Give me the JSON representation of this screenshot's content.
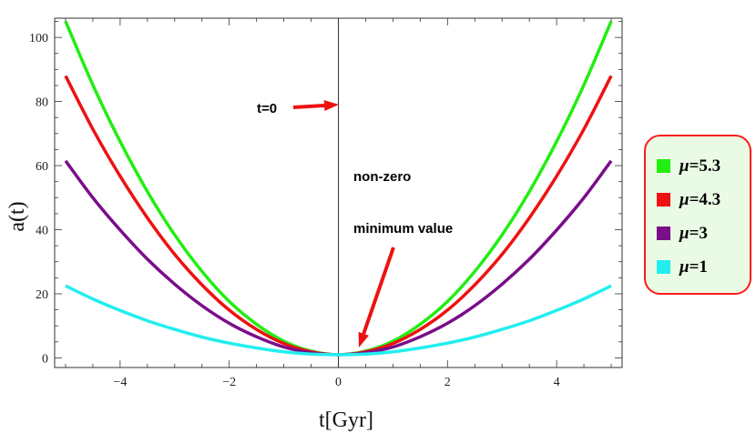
{
  "chart_data": {
    "type": "line",
    "title": "",
    "xlabel": "t[Gyr]",
    "ylabel": "a(t)",
    "xlim": [
      -5.2,
      5.2
    ],
    "ylim": [
      -3,
      106
    ],
    "xticks": [
      -4,
      -2,
      0,
      2,
      4
    ],
    "xtick_labels": [
      "−4",
      "−2",
      "0",
      "2",
      "4"
    ],
    "yticks": [
      0,
      20,
      40,
      60,
      80,
      100
    ],
    "ytick_labels": [
      "0",
      "20",
      "40",
      "60",
      "80",
      "100"
    ],
    "x": [
      -5,
      -4.5,
      -4,
      -3.5,
      -3,
      -2.5,
      -2,
      -1.5,
      -1,
      -0.5,
      0,
      0.5,
      1,
      1.5,
      2,
      2.5,
      3,
      3.5,
      4,
      4.5,
      5
    ],
    "series": [
      {
        "name": "μ=5.3",
        "color": "#22ee11",
        "values": [
          105,
          85.2,
          67.5,
          51.9,
          38.4,
          27.0,
          17.6,
          10.5,
          5.2,
          2.1,
          1.0,
          2.1,
          5.2,
          10.5,
          17.6,
          27.0,
          38.4,
          51.9,
          67.5,
          85.2,
          105
        ]
      },
      {
        "name": "μ=4.3",
        "color": "#ee1111",
        "values": [
          88,
          71.4,
          56.7,
          43.7,
          32.3,
          22.8,
          14.9,
          8.9,
          4.5,
          1.9,
          1.0,
          1.9,
          4.5,
          8.9,
          14.9,
          22.8,
          32.3,
          43.7,
          56.7,
          71.4,
          88
        ]
      },
      {
        "name": "μ=3",
        "color": "#7a0d8a",
        "values": [
          61.5,
          50.0,
          39.9,
          30.8,
          23.0,
          16.3,
          10.8,
          6.6,
          3.4,
          1.6,
          1.0,
          1.6,
          3.4,
          6.6,
          10.8,
          16.3,
          23.0,
          30.8,
          39.9,
          50.0,
          61.5
        ]
      },
      {
        "name": "μ=1",
        "color": "#22eeee",
        "values": [
          22.5,
          18.4,
          14.8,
          11.6,
          8.9,
          6.5,
          4.6,
          3.1,
          1.9,
          1.2,
          1.0,
          1.2,
          1.9,
          3.1,
          4.6,
          6.5,
          8.9,
          11.6,
          14.8,
          18.4,
          22.5
        ]
      }
    ],
    "annotations": [
      {
        "text": "t=0",
        "arrow_color": "#ee1111"
      },
      {
        "lines": [
          "non-zero",
          "minimum value"
        ],
        "arrow_color": "#ee1111"
      }
    ],
    "legend": {
      "placement": "right",
      "border_color": "#ff1a1a",
      "background": "#e9fbe4",
      "items": [
        {
          "symbol": "μ",
          "rest": "=5.3",
          "color": "#22ee11"
        },
        {
          "symbol": "μ",
          "rest": "=4.3",
          "color": "#ee1111"
        },
        {
          "symbol": "μ",
          "rest": "=3",
          "color": "#7a0d8a"
        },
        {
          "symbol": "μ",
          "rest": "=1",
          "color": "#22eeee"
        }
      ]
    }
  }
}
